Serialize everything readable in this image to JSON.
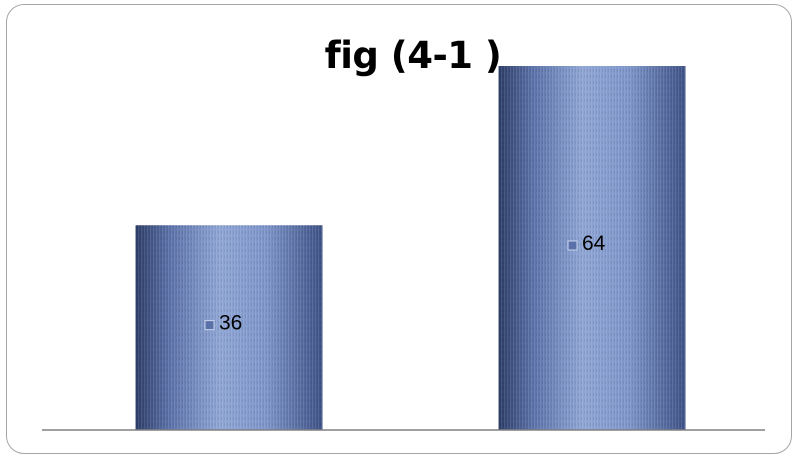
{
  "chart_data": {
    "type": "bar",
    "title": "fig (4-1 )",
    "categories": [
      "",
      ""
    ],
    "values": [
      36,
      64
    ],
    "data_labels": [
      "36",
      "64"
    ],
    "ylim": [
      0,
      70
    ],
    "grid": false,
    "legend": "none",
    "xlabel": "",
    "ylabel": ""
  },
  "colors": {
    "bar_light": "#8ea5d4",
    "bar_mid": "#6f86bf",
    "bar_dark": "#2c3d66",
    "axis": "#808080",
    "frame": "#a6a6a6"
  }
}
